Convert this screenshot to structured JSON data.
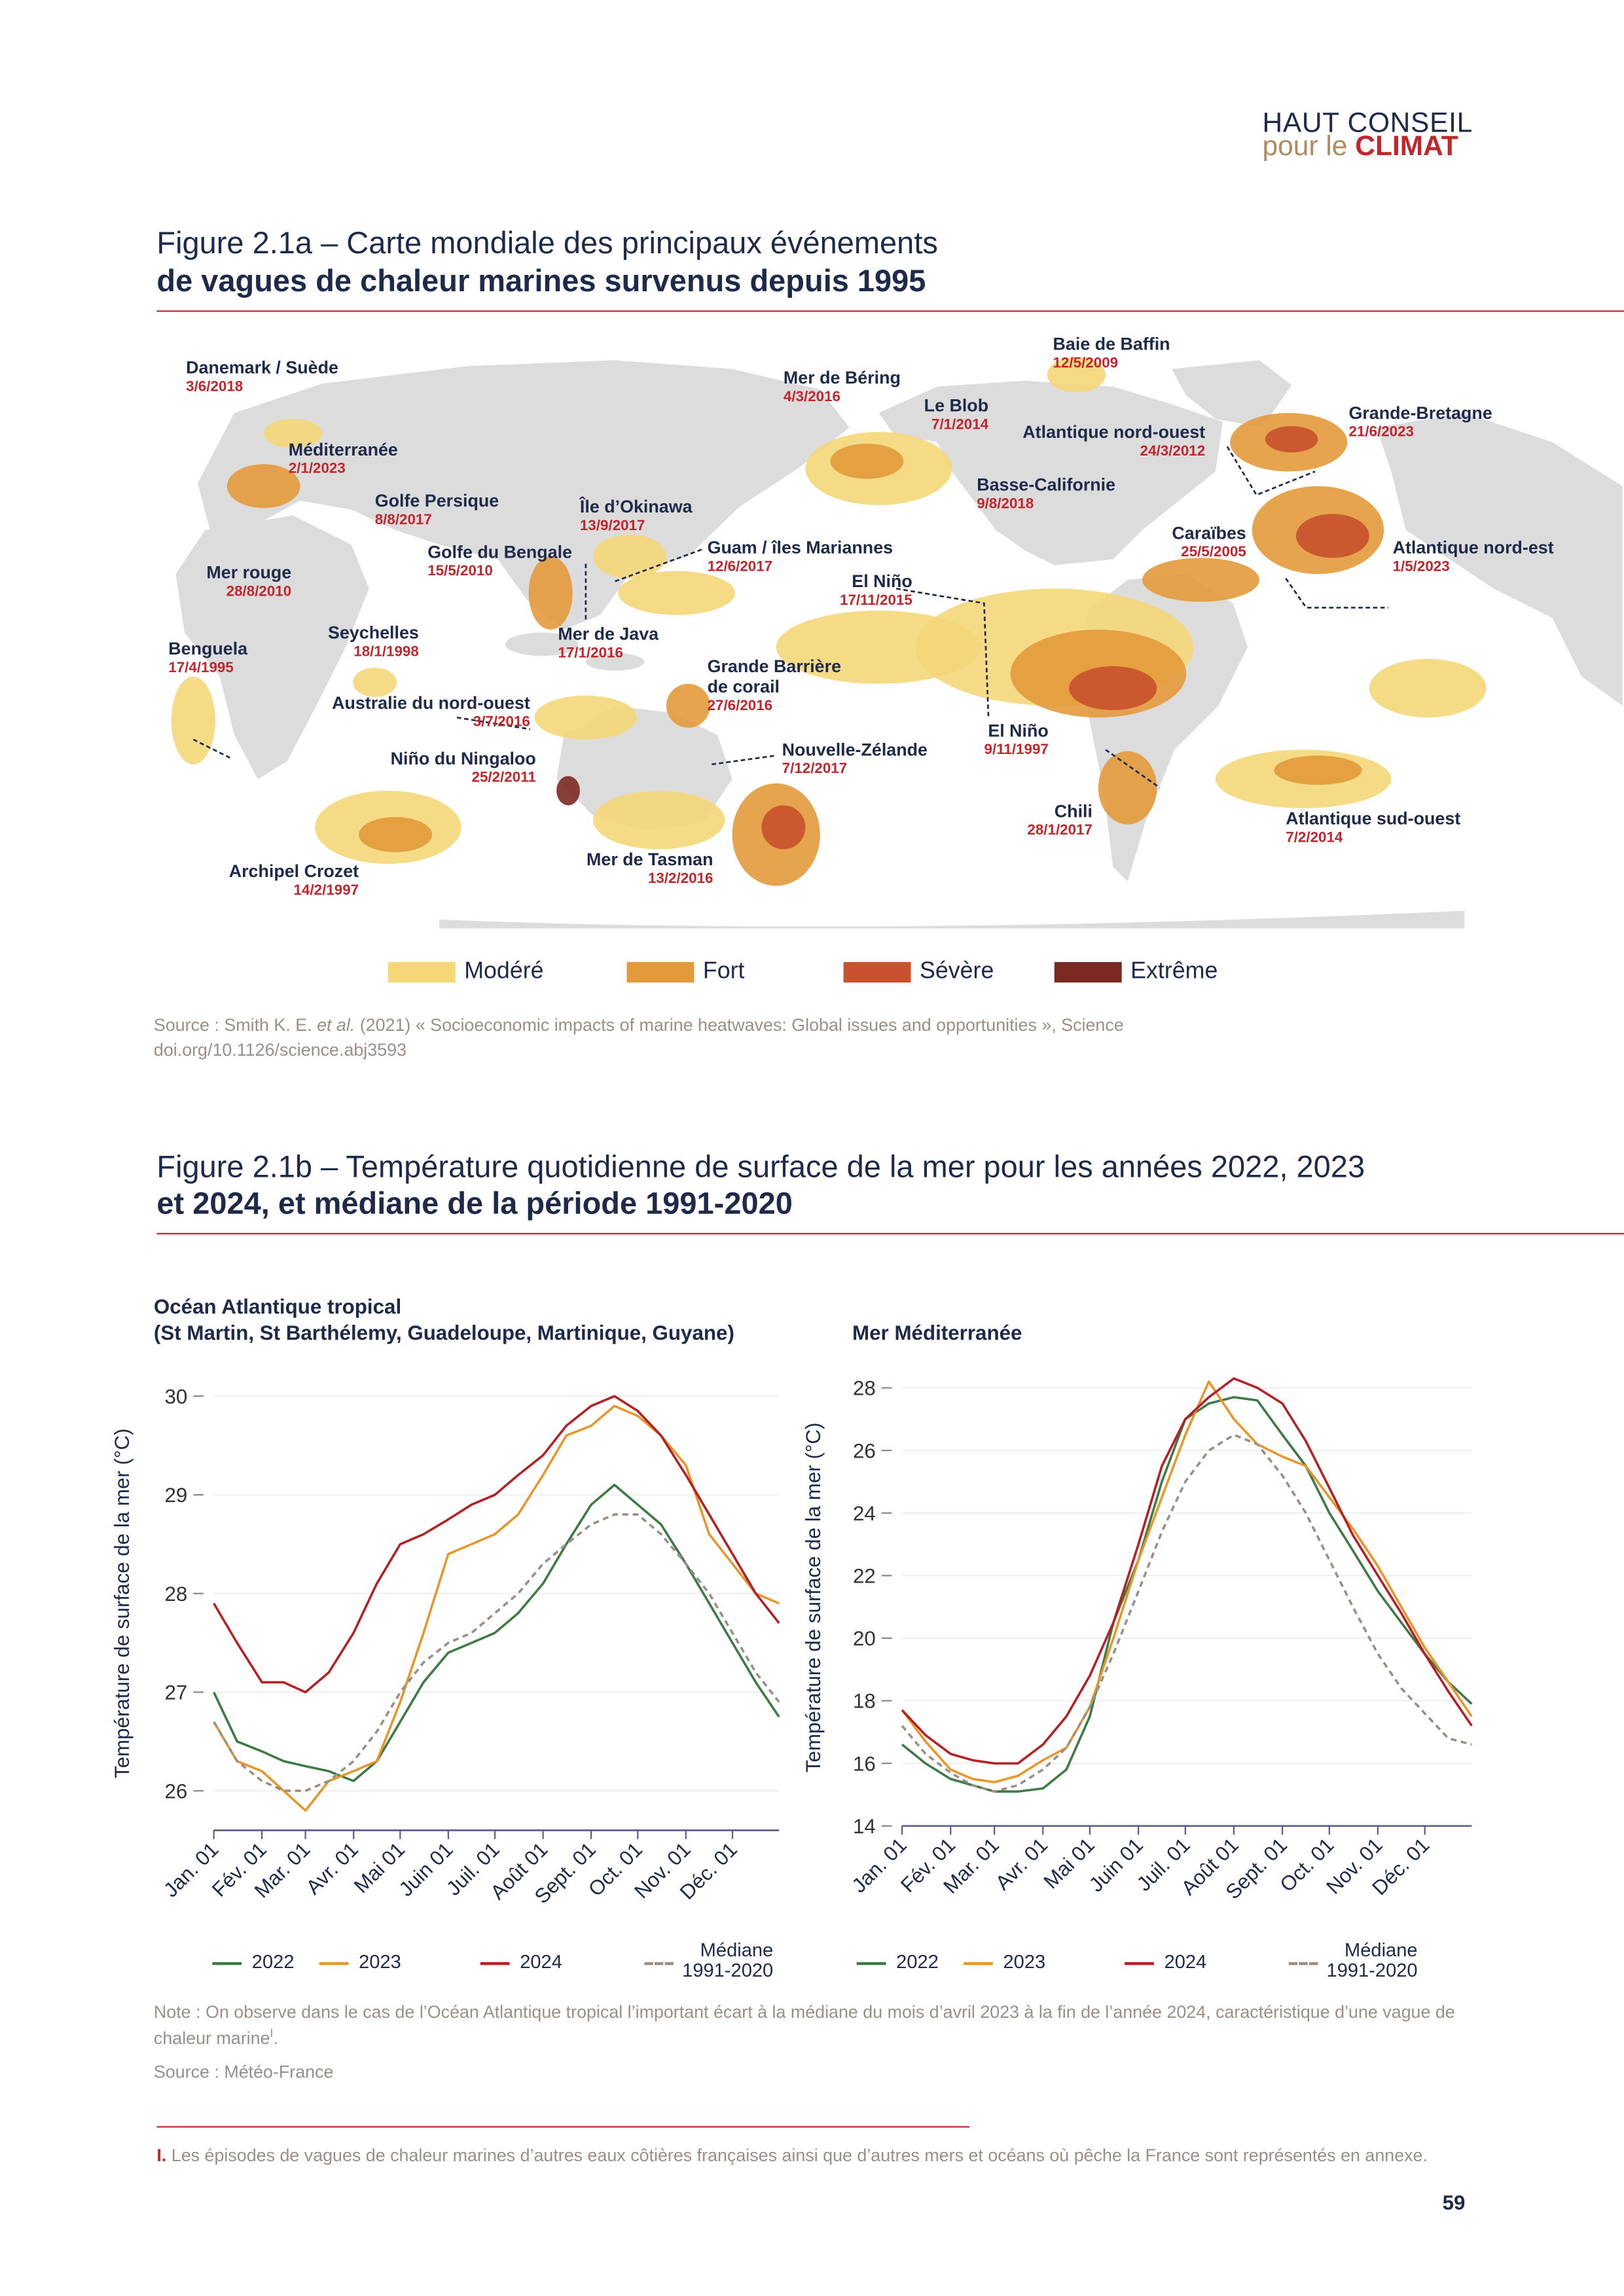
{
  "header": {
    "line1": "HAUT CONSEIL",
    "line2": "pour le",
    "line2_bold": "CLIMAT"
  },
  "figure_a": {
    "title_1": "Figure 2.1a – Carte mondiale des principaux événements",
    "title_2": "de vagues de chaleur marines survenus depuis 1995",
    "events": [
      {
        "name": "Danemark / Suède",
        "date": "3/6/2018"
      },
      {
        "name": "Méditerranée",
        "date": "2/1/2023"
      },
      {
        "name": "Golfe Persique",
        "date": "8/8/2017"
      },
      {
        "name": "Île d’Okinawa",
        "date": "13/9/2017"
      },
      {
        "name": "Mer rouge",
        "date": "28/8/2010"
      },
      {
        "name": "Golfe du Bengale",
        "date": "15/5/2010"
      },
      {
        "name": "Guam / îles Mariannes",
        "date": "12/6/2017"
      },
      {
        "name": "Seychelles",
        "date": "18/1/1998"
      },
      {
        "name": "Benguela",
        "date": "17/4/1995"
      },
      {
        "name": "Mer de Java",
        "date": "17/1/2016"
      },
      {
        "name": "Australie du nord-ouest",
        "date": "3/7/2016"
      },
      {
        "name": "Grande Barrière de corail",
        "date": "27/6/2016"
      },
      {
        "name": "Niño du Ningaloo",
        "date": "25/2/2011"
      },
      {
        "name": "Nouvelle-Zélande",
        "date": "7/12/2017"
      },
      {
        "name": "Mer de Tasman",
        "date": "13/2/2016"
      },
      {
        "name": "Archipel Crozet",
        "date": "14/2/1997"
      },
      {
        "name": "Mer de Béring",
        "date": "4/3/2016"
      },
      {
        "name": "Le Blob",
        "date": "7/1/2014"
      },
      {
        "name": "Baie de Baffin",
        "date": "12/5/2009"
      },
      {
        "name": "Atlantique nord-ouest",
        "date": "24/3/2012"
      },
      {
        "name": "Grande-Bretagne",
        "date": "21/6/2023"
      },
      {
        "name": "Basse-Californie",
        "date": "9/8/2018"
      },
      {
        "name": "Caraïbes",
        "date": "25/5/2005"
      },
      {
        "name": "Atlantique nord-est",
        "date": "1/5/2023"
      },
      {
        "name": "El Niño",
        "date": "17/11/2015"
      },
      {
        "name": "El Niño",
        "date": "9/11/1997"
      },
      {
        "name": "Chili",
        "date": "28/1/2017"
      },
      {
        "name": "Atlantique sud-ouest",
        "date": "7/2/2014"
      }
    ],
    "legend": [
      {
        "label": "Modéré",
        "color": "#f5d77a"
      },
      {
        "label": "Fort",
        "color": "#e39a3b"
      },
      {
        "label": "Sévère",
        "color": "#c8512e"
      },
      {
        "label": "Extrême",
        "color": "#7a2a22"
      }
    ],
    "source": [
      "Source : Smith K. E. ",
      "et al.",
      " (2021) « Socioeconomic impacts of marine heatwaves: Global issues and opportunities », Science",
      "doi.org/10.1126/science.abj3593"
    ]
  },
  "figure_b": {
    "title_1": "Figure 2.1b – Température quotidienne de surface de la mer pour les années 2022, 2023",
    "title_2": "et 2024, et médiane de la période 1991-2020",
    "note": [
      "Note : On observe dans le cas de l’Océan Atlantique tropical l’important écart à la médiane du mois d’avril 2023 à la fin de l’année 2024, caractéristique d’une vague de chaleur marine",
      "I",
      "."
    ],
    "source": "Source : Météo-France"
  },
  "chart_data": [
    {
      "type": "line",
      "title": "Océan Atlantique tropical",
      "subtitle": "(St Martin, St Barthélemy, Guadeloupe, Martinique, Guyane)",
      "y_label": "Température de surface de la mer (°C)",
      "x": [
        1,
        16,
        32,
        46,
        60,
        75,
        91,
        106,
        121,
        136,
        152,
        167,
        182,
        197,
        213,
        228,
        244,
        259,
        274,
        289,
        305,
        320,
        335,
        350,
        365
      ],
      "xlim": [
        1,
        365
      ],
      "xticks": [
        {
          "value": 1,
          "label": "Jan. 01"
        },
        {
          "value": 32,
          "label": "Fév. 01"
        },
        {
          "value": 60,
          "label": "Mar. 01"
        },
        {
          "value": 91,
          "label": "Avr. 01"
        },
        {
          "value": 121,
          "label": "Mai 01"
        },
        {
          "value": 152,
          "label": "Juin 01"
        },
        {
          "value": 182,
          "label": "Juil. 01"
        },
        {
          "value": 213,
          "label": "Août 01"
        },
        {
          "value": 244,
          "label": "Sept. 01"
        },
        {
          "value": 274,
          "label": "Oct. 01"
        },
        {
          "value": 305,
          "label": "Nov. 01"
        },
        {
          "value": 335,
          "label": "Déc. 01"
        }
      ],
      "ylim": [
        25.6,
        30.2
      ],
      "yticks": [
        26,
        27,
        28,
        29,
        30
      ],
      "grid": true,
      "series": [
        {
          "name": "2022",
          "color": "#3d7a45",
          "values": [
            27.0,
            26.5,
            26.4,
            26.3,
            26.25,
            26.2,
            26.1,
            26.3,
            26.7,
            27.1,
            27.4,
            27.5,
            27.6,
            27.8,
            28.1,
            28.5,
            28.9,
            29.1,
            28.9,
            28.7,
            28.3,
            27.9,
            27.5,
            27.1,
            26.75
          ]
        },
        {
          "name": "2023",
          "color": "#e8962a",
          "values": [
            26.7,
            26.3,
            26.2,
            26.0,
            25.8,
            26.1,
            26.2,
            26.3,
            26.9,
            27.6,
            28.4,
            28.5,
            28.6,
            28.8,
            29.2,
            29.6,
            29.7,
            29.9,
            29.8,
            29.6,
            29.3,
            28.6,
            28.3,
            28.0,
            27.9
          ]
        },
        {
          "name": "2024",
          "color": "#b52025",
          "values": [
            27.9,
            27.5,
            27.1,
            27.1,
            27.0,
            27.2,
            27.6,
            28.1,
            28.5,
            28.6,
            28.75,
            28.9,
            29.0,
            29.2,
            29.4,
            29.7,
            29.9,
            30.0,
            29.85,
            29.6,
            29.2,
            28.8,
            28.4,
            28.0,
            27.7
          ]
        },
        {
          "name": "Médiane 1991-2020",
          "color": "#9a8f88",
          "dashed": true,
          "values": [
            26.7,
            26.3,
            26.1,
            26.0,
            26.0,
            26.1,
            26.3,
            26.6,
            27.0,
            27.3,
            27.5,
            27.6,
            27.8,
            28.0,
            28.3,
            28.5,
            28.7,
            28.8,
            28.8,
            28.6,
            28.3,
            28.0,
            27.6,
            27.2,
            26.9
          ]
        }
      ]
    },
    {
      "type": "line",
      "title": "Mer Méditerranée",
      "y_label": "Température de surface de la mer (°C)",
      "x": [
        1,
        16,
        32,
        46,
        60,
        75,
        91,
        106,
        121,
        136,
        152,
        167,
        182,
        197,
        213,
        228,
        244,
        259,
        274,
        289,
        305,
        320,
        335,
        350,
        365
      ],
      "xlim": [
        1,
        365
      ],
      "xticks": [
        {
          "value": 1,
          "label": "Jan. 01"
        },
        {
          "value": 32,
          "label": "Fév. 01"
        },
        {
          "value": 60,
          "label": "Mar. 01"
        },
        {
          "value": 91,
          "label": "Avr. 01"
        },
        {
          "value": 121,
          "label": "Mai 01"
        },
        {
          "value": 152,
          "label": "Juin 01"
        },
        {
          "value": 182,
          "label": "Juil. 01"
        },
        {
          "value": 213,
          "label": "Août 01"
        },
        {
          "value": 244,
          "label": "Sept. 01"
        },
        {
          "value": 274,
          "label": "Oct. 01"
        },
        {
          "value": 305,
          "label": "Nov. 01"
        },
        {
          "value": 335,
          "label": "Déc. 01"
        }
      ],
      "ylim": [
        14,
        28.6
      ],
      "yticks": [
        14,
        16,
        18,
        20,
        22,
        24,
        26,
        28
      ],
      "grid": true,
      "series": [
        {
          "name": "2022",
          "color": "#3d7a45",
          "values": [
            16.6,
            16.0,
            15.5,
            15.3,
            15.1,
            15.1,
            15.2,
            15.8,
            17.5,
            20.5,
            22.5,
            25.0,
            27.0,
            27.5,
            27.7,
            27.6,
            26.5,
            25.5,
            24.0,
            22.8,
            21.5,
            20.5,
            19.5,
            18.6,
            17.9
          ]
        },
        {
          "name": "2023",
          "color": "#e8962a",
          "values": [
            17.7,
            16.7,
            15.8,
            15.5,
            15.4,
            15.6,
            16.1,
            16.5,
            17.8,
            20.0,
            22.5,
            24.5,
            26.5,
            28.2,
            27.0,
            26.2,
            25.8,
            25.5,
            24.5,
            23.5,
            22.3,
            21.0,
            19.7,
            18.6,
            17.5
          ]
        },
        {
          "name": "2024",
          "color": "#b52025",
          "values": [
            17.7,
            16.9,
            16.3,
            16.1,
            16.0,
            16.0,
            16.6,
            17.5,
            18.8,
            20.5,
            23.0,
            25.5,
            27.0,
            27.7,
            28.3,
            28.0,
            27.5,
            26.3,
            24.8,
            23.3,
            22.0,
            20.8,
            19.5,
            18.3,
            17.2
          ]
        },
        {
          "name": "Médiane 1991-2020",
          "color": "#9a8f88",
          "dashed": true,
          "values": [
            17.2,
            16.3,
            15.7,
            15.3,
            15.1,
            15.3,
            15.8,
            16.5,
            17.8,
            19.5,
            21.5,
            23.4,
            25.0,
            26.0,
            26.5,
            26.2,
            25.2,
            24.0,
            22.5,
            21.0,
            19.5,
            18.4,
            17.6,
            16.8,
            16.6
          ]
        }
      ]
    }
  ],
  "footnote": {
    "marker": "I.",
    "text": "Les épisodes de vagues de chaleur marines d’autres eaux côtières françaises ainsi que d’autres mers et océans où pêche la France sont représentés en annexe."
  },
  "page_number": "59"
}
